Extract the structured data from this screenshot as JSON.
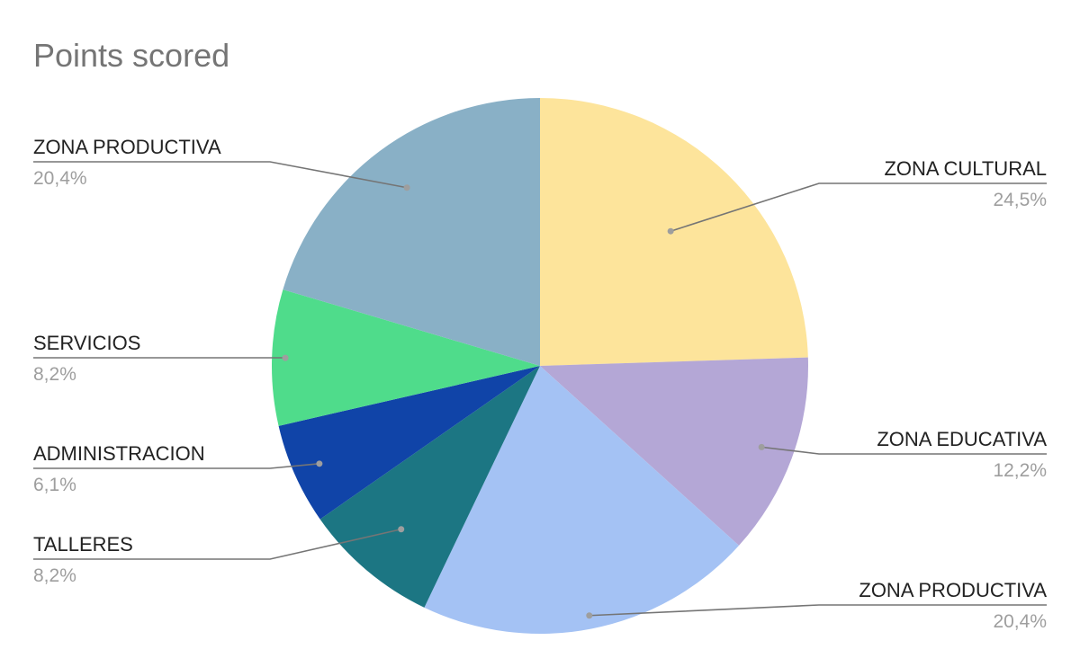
{
  "chart_data": {
    "type": "pie",
    "title": "Points scored",
    "slices": [
      {
        "label": "ZONA CULTURAL",
        "value": 24.5,
        "display": "24,5%",
        "color": "#fde49b"
      },
      {
        "label": "ZONA EDUCATIVA",
        "value": 12.2,
        "display": "12,2%",
        "color": "#b4a7d6"
      },
      {
        "label": "ZONA PRODUCTIVA",
        "value": 20.4,
        "display": "20,4%",
        "color": "#a4c2f4"
      },
      {
        "label": "TALLERES",
        "value": 8.2,
        "display": "8,2%",
        "color": "#1c7683"
      },
      {
        "label": "ADMINISTRACION",
        "value": 6.1,
        "display": "6,1%",
        "color": "#1044a8"
      },
      {
        "label": "SERVICIOS",
        "value": 8.2,
        "display": "8,2%",
        "color": "#4fdc8b"
      },
      {
        "label": "ZONA PRODUCTIVA",
        "value": 20.4,
        "display": "20,4%",
        "color": "#89b0c6"
      }
    ],
    "start_angle": "12 o'clock",
    "direction": "clockwise",
    "legend": "none"
  }
}
